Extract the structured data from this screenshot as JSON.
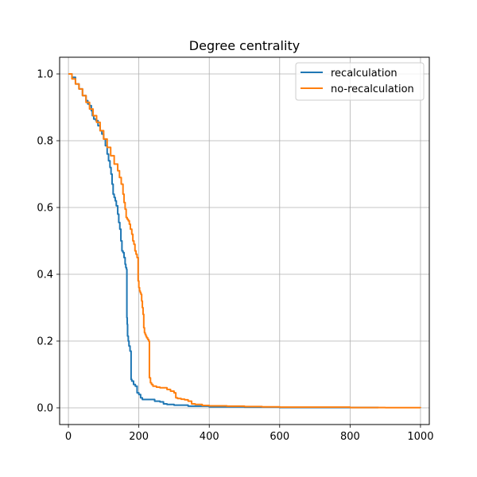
{
  "chart_data": {
    "type": "line",
    "title": "Degree centrality",
    "xlabel": "",
    "ylabel": "",
    "xlim": [
      -25,
      1025
    ],
    "ylim": [
      -0.05,
      1.05
    ],
    "xticks": [
      0,
      200,
      400,
      600,
      800,
      1000
    ],
    "yticks": [
      0.0,
      0.2,
      0.4,
      0.6,
      0.8,
      1.0
    ],
    "xtick_labels": [
      "0",
      "200",
      "400",
      "600",
      "800",
      "1000"
    ],
    "ytick_labels": [
      "0.0",
      "0.2",
      "0.4",
      "0.6",
      "0.8",
      "1.0"
    ],
    "grid": true,
    "legend_position": "top-right",
    "series": [
      {
        "name": "recalculation",
        "color": "#1f77b4",
        "x": [
          0,
          10,
          20,
          30,
          40,
          50,
          55,
          60,
          65,
          68,
          72,
          78,
          84,
          90,
          95,
          100,
          105,
          110,
          114,
          118,
          121,
          124,
          127,
          130,
          133,
          136,
          140,
          143,
          146,
          149,
          152,
          155,
          158,
          161,
          163,
          165,
          166,
          167,
          168,
          170,
          172,
          175,
          178,
          180,
          185,
          190,
          195,
          200,
          205,
          210,
          220,
          230,
          245,
          260,
          270,
          280,
          300,
          340,
          400,
          500,
          600,
          800,
          880
        ],
        "y": [
          1.0,
          0.99,
          0.97,
          0.955,
          0.935,
          0.92,
          0.91,
          0.905,
          0.89,
          0.875,
          0.865,
          0.86,
          0.845,
          0.83,
          0.82,
          0.805,
          0.785,
          0.76,
          0.74,
          0.72,
          0.7,
          0.67,
          0.64,
          0.63,
          0.62,
          0.605,
          0.58,
          0.555,
          0.535,
          0.5,
          0.47,
          0.465,
          0.45,
          0.43,
          0.42,
          0.415,
          0.27,
          0.25,
          0.215,
          0.2,
          0.185,
          0.17,
          0.085,
          0.08,
          0.07,
          0.065,
          0.045,
          0.04,
          0.03,
          0.025,
          0.025,
          0.025,
          0.02,
          0.018,
          0.012,
          0.01,
          0.008,
          0.005,
          0.003,
          0.002,
          0.001,
          0.001,
          0.0
        ]
      },
      {
        "name": "no-recalculation",
        "color": "#ff7f0e",
        "x": [
          0,
          10,
          20,
          30,
          40,
          50,
          60,
          70,
          80,
          90,
          100,
          110,
          120,
          130,
          140,
          145,
          150,
          155,
          158,
          161,
          164,
          167,
          170,
          173,
          176,
          180,
          183,
          186,
          189,
          192,
          195,
          198,
          200,
          202,
          204,
          206,
          208,
          210,
          212,
          214,
          216,
          218,
          220,
          222,
          225,
          228,
          230,
          233,
          236,
          240,
          245,
          250,
          260,
          270,
          280,
          290,
          300,
          305,
          310,
          320,
          330,
          340,
          350,
          360,
          380,
          400,
          450,
          500,
          550,
          600,
          700,
          800,
          900,
          1000
        ],
        "y": [
          1.0,
          0.985,
          0.97,
          0.955,
          0.935,
          0.915,
          0.895,
          0.875,
          0.855,
          0.83,
          0.805,
          0.78,
          0.755,
          0.73,
          0.71,
          0.69,
          0.67,
          0.64,
          0.615,
          0.595,
          0.57,
          0.565,
          0.56,
          0.55,
          0.535,
          0.52,
          0.5,
          0.49,
          0.47,
          0.46,
          0.45,
          0.38,
          0.36,
          0.35,
          0.345,
          0.34,
          0.32,
          0.3,
          0.28,
          0.24,
          0.225,
          0.22,
          0.215,
          0.21,
          0.205,
          0.2,
          0.09,
          0.075,
          0.07,
          0.065,
          0.065,
          0.062,
          0.06,
          0.06,
          0.055,
          0.05,
          0.045,
          0.03,
          0.028,
          0.026,
          0.024,
          0.02,
          0.012,
          0.01,
          0.007,
          0.006,
          0.005,
          0.004,
          0.003,
          0.002,
          0.002,
          0.001,
          0.0005,
          0.0
        ]
      }
    ]
  }
}
